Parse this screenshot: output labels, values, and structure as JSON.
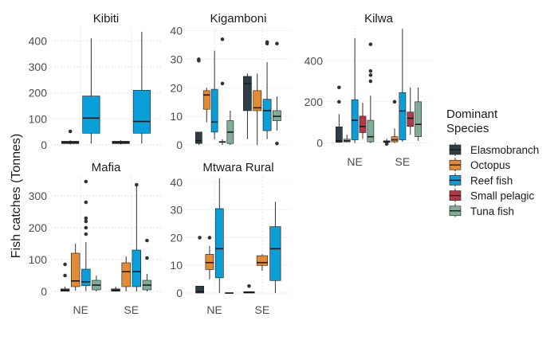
{
  "chart_data": {
    "type": "boxplot",
    "ylabel": "Fish catches (Tonnes)",
    "legend": {
      "title_lines": [
        "Dominant",
        "Species"
      ],
      "placement": "right",
      "items": [
        {
          "name": "Elasmobranch",
          "color": "#2f3e46"
        },
        {
          "name": "Octopus",
          "color": "#e08b35"
        },
        {
          "name": "Reef fish",
          "color": "#0a9fd8"
        },
        {
          "name": "Small pelagic",
          "color": "#b23a48"
        },
        {
          "name": "Tuna fish",
          "color": "#7fae96"
        }
      ]
    },
    "categories": [
      "NE",
      "SE"
    ],
    "panels": [
      {
        "title": "Kibiti",
        "ylim": [
          0,
          450
        ],
        "yticks": [
          0,
          100,
          200,
          300,
          400
        ],
        "boxes": {
          "NE": [
            {
              "species": "Elasmobranch",
              "min": 2,
              "q1": 5,
              "median": 10,
              "q3": 14,
              "max": 18,
              "outliers": [
                52
              ]
            },
            {
              "species": "Reef fish",
              "min": 5,
              "q1": 45,
              "median": 103,
              "q3": 188,
              "max": 410,
              "outliers": []
            }
          ],
          "SE": [
            {
              "species": "Elasmobranch",
              "min": 2,
              "q1": 5,
              "median": 10,
              "q3": 14,
              "max": 18,
              "outliers": []
            },
            {
              "species": "Reef fish",
              "min": 5,
              "q1": 45,
              "median": 90,
              "q3": 210,
              "max": 435,
              "outliers": []
            }
          ]
        }
      },
      {
        "title": "Kigamboni",
        "ylim": [
          0,
          41
        ],
        "yticks": [
          0,
          10,
          20,
          30,
          40
        ],
        "boxes": {
          "NE": [
            {
              "species": "Elasmobranch",
              "min": 0,
              "q1": 0.5,
              "median": 1.5,
              "q3": 4.5,
              "max": 4.5,
              "outliers": [
                29.5,
                30
              ]
            },
            {
              "species": "Octopus",
              "min": 8,
              "q1": 12.5,
              "median": 17.5,
              "q3": 19,
              "max": 20,
              "outliers": []
            },
            {
              "species": "Reef fish",
              "min": 2,
              "q1": 4.5,
              "median": 8,
              "q3": 19.5,
              "max": 33,
              "outliers": []
            },
            {
              "species": "Small pelagic",
              "min": 0,
              "q1": 1,
              "median": 1,
              "q3": 1.2,
              "max": 2,
              "outliers": [
                21.5,
                37
              ]
            },
            {
              "species": "Tuna fish",
              "min": 0,
              "q1": 0.5,
              "median": 4.5,
              "q3": 8.5,
              "max": 12,
              "outliers": []
            }
          ],
          "SE": [
            {
              "species": "Elasmobranch",
              "min": 2,
              "q1": 12,
              "median": 21.5,
              "q3": 24,
              "max": 25,
              "outliers": []
            },
            {
              "species": "Octopus",
              "min": 0,
              "q1": 12,
              "median": 13,
              "q3": 19,
              "max": 25,
              "outliers": []
            },
            {
              "species": "Reef fish",
              "min": 2,
              "q1": 5,
              "median": 12,
              "q3": 16,
              "max": 29,
              "outliers": [
                35.5,
                36
              ]
            },
            {
              "species": "Tuna fish",
              "min": 5,
              "q1": 8.5,
              "median": 10,
              "q3": 12,
              "max": 17,
              "outliers": [
                0.5,
                35.5
              ]
            }
          ]
        }
      },
      {
        "title": "Kilwa",
        "ylim": [
          -10,
          560
        ],
        "yticks": [
          0,
          200,
          400
        ],
        "boxes": {
          "NE": [
            {
              "species": "Elasmobranch",
              "min": 0,
              "q1": 3,
              "median": 10,
              "q3": 78,
              "max": 140,
              "outliers": [
                200,
                270
              ]
            },
            {
              "species": "Octopus",
              "min": 3,
              "q1": 5,
              "median": 10,
              "q3": 18,
              "max": 40,
              "outliers": []
            },
            {
              "species": "Reef fish",
              "min": 0,
              "q1": 15,
              "median": 110,
              "q3": 210,
              "max": 510,
              "outliers": []
            },
            {
              "species": "Small pelagic",
              "min": 20,
              "q1": 50,
              "median": 80,
              "q3": 130,
              "max": 195,
              "outliers": []
            },
            {
              "species": "Tuna fish",
              "min": 0,
              "q1": 5,
              "median": 30,
              "q3": 110,
              "max": 230,
              "outliers": [
                300,
                330,
                350,
                480
              ]
            }
          ],
          "SE": [
            {
              "species": "Elasmobranch",
              "min": 0,
              "q1": 2,
              "median": 5,
              "q3": 10,
              "max": 20,
              "outliers": [
                -5
              ]
            },
            {
              "species": "Octopus",
              "min": 0,
              "q1": 5,
              "median": 15,
              "q3": 30,
              "max": 70,
              "outliers": [
                200
              ]
            },
            {
              "species": "Reef fish",
              "min": 5,
              "q1": 15,
              "median": 155,
              "q3": 245,
              "max": 555,
              "outliers": []
            },
            {
              "species": "Small pelagic",
              "min": 40,
              "q1": 80,
              "median": 120,
              "q3": 150,
              "max": 270,
              "outliers": []
            },
            {
              "species": "Tuna fish",
              "min": 10,
              "q1": 30,
              "median": 90,
              "q3": 200,
              "max": 270,
              "outliers": []
            }
          ]
        }
      },
      {
        "title": "Mafia",
        "ylim": [
          -5,
          360
        ],
        "yticks": [
          0,
          100,
          200,
          300
        ],
        "boxes": {
          "NE": [
            {
              "species": "Elasmobranch",
              "min": 0,
              "q1": 1,
              "median": 3,
              "q3": 8,
              "max": 15,
              "outliers": [
                50,
                85
              ]
            },
            {
              "species": "Octopus",
              "min": 2,
              "q1": 15,
              "median": 33,
              "q3": 120,
              "max": 150,
              "outliers": []
            },
            {
              "species": "Reef fish",
              "min": 1,
              "q1": 18,
              "median": 30,
              "q3": 70,
              "max": 155,
              "outliers": [
                180,
                200,
                220,
                230,
                280,
                345
              ]
            },
            {
              "species": "Tuna fish",
              "min": 0,
              "q1": 5,
              "median": 20,
              "q3": 35,
              "max": 50,
              "outliers": []
            }
          ],
          "SE": [
            {
              "species": "Elasmobranch",
              "min": 0,
              "q1": 1,
              "median": 3,
              "q3": 8,
              "max": 15,
              "outliers": []
            },
            {
              "species": "Octopus",
              "min": 0,
              "q1": 15,
              "median": 62,
              "q3": 90,
              "max": 110,
              "outliers": []
            },
            {
              "species": "Reef fish",
              "min": 0,
              "q1": 15,
              "median": 62,
              "q3": 130,
              "max": 330,
              "outliers": [
                335
              ]
            },
            {
              "species": "Tuna fish",
              "min": 0,
              "q1": 5,
              "median": 20,
              "q3": 35,
              "max": 55,
              "outliers": [
                105,
                160
              ]
            }
          ]
        }
      },
      {
        "title": "Mtwara Rural",
        "ylim": [
          0,
          42
        ],
        "yticks": [
          0,
          10,
          20,
          30,
          40
        ],
        "boxes": {
          "NE": [
            {
              "species": "Elasmobranch",
              "min": 0,
              "q1": 0,
              "median": 0.5,
              "q3": 2.5,
              "max": 2.5,
              "outliers": [
                20
              ]
            },
            {
              "species": "Octopus",
              "min": 5,
              "q1": 8.5,
              "median": 11,
              "q3": 14,
              "max": 17,
              "outliers": [
                20
              ]
            },
            {
              "species": "Reef fish",
              "min": 0,
              "q1": 5.5,
              "median": 16,
              "q3": 30.5,
              "max": 41.5,
              "outliers": []
            },
            {
              "species": "Tuna fish",
              "min": 0,
              "q1": 0,
              "median": 0,
              "q3": 0.1,
              "max": 0.1,
              "outliers": []
            }
          ],
          "SE": [
            {
              "species": "Elasmobranch",
              "min": 0,
              "q1": 0,
              "median": 0.2,
              "q3": 0.5,
              "max": 0.5,
              "outliers": [
                2.5
              ]
            },
            {
              "species": "Octopus",
              "min": 8,
              "q1": 10,
              "median": 11,
              "q3": 13.5,
              "max": 14,
              "outliers": []
            },
            {
              "species": "Reef fish",
              "min": 0,
              "q1": 4.5,
              "median": 16,
              "q3": 24,
              "max": 33,
              "outliers": []
            }
          ]
        }
      }
    ]
  }
}
